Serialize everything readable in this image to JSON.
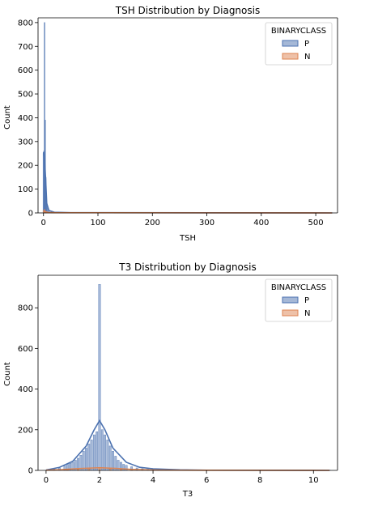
{
  "chart_data": [
    {
      "type": "histogram",
      "title": "TSH Distribution by Diagnosis",
      "xlabel": "TSH",
      "ylabel": "Count",
      "xlim": [
        -10,
        540
      ],
      "ylim": [
        0,
        820
      ],
      "xticks": [
        0,
        100,
        200,
        300,
        400,
        500
      ],
      "yticks": [
        0,
        100,
        200,
        300,
        400,
        500,
        600,
        700,
        800
      ],
      "legend": {
        "title": "BINARYCLASS",
        "placement": "top-right",
        "entries": [
          "P",
          "N"
        ]
      },
      "colors": {
        "P": "#4c72b0",
        "N": "#dd8452"
      },
      "series": [
        {
          "name": "P",
          "bins": [
            [
              0,
              250
            ],
            [
              1,
              260
            ],
            [
              2,
              800
            ],
            [
              3,
              390
            ],
            [
              4,
              150
            ],
            [
              5,
              70
            ],
            [
              6,
              40
            ],
            [
              8,
              20
            ],
            [
              10,
              8
            ],
            [
              15,
              5
            ],
            [
              20,
              3
            ],
            [
              40,
              2
            ],
            [
              80,
              1
            ],
            [
              150,
              1
            ],
            [
              250,
              1
            ],
            [
              400,
              1
            ],
            [
              530,
              1
            ]
          ],
          "kde": [
            [
              0,
              255
            ],
            [
              2,
              220
            ],
            [
              4,
              140
            ],
            [
              6,
              40
            ],
            [
              10,
              10
            ],
            [
              20,
              3
            ],
            [
              50,
              1
            ],
            [
              100,
              1
            ],
            [
              530,
              0
            ]
          ]
        },
        {
          "name": "N",
          "bins": [
            [
              0,
              10
            ],
            [
              2,
              15
            ],
            [
              4,
              6
            ],
            [
              6,
              2
            ]
          ],
          "kde": [
            [
              0,
              8
            ],
            [
              3,
              6
            ],
            [
              8,
              2
            ],
            [
              20,
              1
            ],
            [
              530,
              0
            ]
          ]
        }
      ]
    },
    {
      "type": "histogram",
      "title": "T3 Distribution by Diagnosis",
      "xlabel": "T3",
      "ylabel": "Count",
      "xlim": [
        -0.3,
        10.9
      ],
      "ylim": [
        0,
        960
      ],
      "xticks": [
        0,
        2,
        4,
        6,
        8,
        10
      ],
      "yticks": [
        0,
        200,
        400,
        600,
        800
      ],
      "legend": {
        "title": "BINARYCLASS",
        "placement": "top-right",
        "entries": [
          "P",
          "N"
        ]
      },
      "colors": {
        "P": "#4c72b0",
        "N": "#dd8452"
      },
      "series": [
        {
          "name": "P",
          "bins": [
            [
              0.1,
              5
            ],
            [
              0.3,
              8
            ],
            [
              0.5,
              12
            ],
            [
              0.7,
              22
            ],
            [
              0.8,
              30
            ],
            [
              0.9,
              35
            ],
            [
              1.0,
              40
            ],
            [
              1.1,
              50
            ],
            [
              1.2,
              60
            ],
            [
              1.3,
              75
            ],
            [
              1.4,
              95
            ],
            [
              1.5,
              110
            ],
            [
              1.6,
              130
            ],
            [
              1.7,
              150
            ],
            [
              1.8,
              175
            ],
            [
              1.9,
              190
            ],
            [
              2.0,
              915
            ],
            [
              2.1,
              200
            ],
            [
              2.2,
              175
            ],
            [
              2.3,
              150
            ],
            [
              2.4,
              120
            ],
            [
              2.5,
              95
            ],
            [
              2.6,
              70
            ],
            [
              2.7,
              50
            ],
            [
              2.8,
              40
            ],
            [
              2.9,
              30
            ],
            [
              3.0,
              25
            ],
            [
              3.2,
              18
            ],
            [
              3.4,
              12
            ],
            [
              3.6,
              8
            ],
            [
              3.8,
              6
            ],
            [
              4.0,
              5
            ],
            [
              4.5,
              3
            ],
            [
              5.0,
              2
            ],
            [
              6.0,
              1
            ],
            [
              7.0,
              1
            ],
            [
              10.6,
              1
            ]
          ],
          "kde": [
            [
              0,
              2
            ],
            [
              0.5,
              15
            ],
            [
              1.0,
              45
            ],
            [
              1.5,
              120
            ],
            [
              1.8,
              200
            ],
            [
              2.0,
              245
            ],
            [
              2.2,
              200
            ],
            [
              2.5,
              110
            ],
            [
              3.0,
              40
            ],
            [
              3.5,
              15
            ],
            [
              4.0,
              8
            ],
            [
              5.0,
              3
            ],
            [
              6.0,
              1
            ],
            [
              10.6,
              0
            ]
          ]
        },
        {
          "name": "N",
          "bins": [
            [
              0.3,
              2
            ],
            [
              0.8,
              5
            ],
            [
              1.2,
              8
            ],
            [
              1.6,
              12
            ],
            [
              2.0,
              15
            ],
            [
              2.4,
              12
            ],
            [
              2.8,
              8
            ],
            [
              3.2,
              5
            ],
            [
              3.6,
              3
            ],
            [
              4.2,
              2
            ],
            [
              5.0,
              1
            ]
          ],
          "kde": [
            [
              0,
              1
            ],
            [
              0.6,
              4
            ],
            [
              1.2,
              9
            ],
            [
              2.0,
              13
            ],
            [
              2.6,
              10
            ],
            [
              3.2,
              5
            ],
            [
              4.0,
              2
            ],
            [
              5.0,
              1
            ],
            [
              10.6,
              0
            ]
          ]
        }
      ]
    }
  ]
}
